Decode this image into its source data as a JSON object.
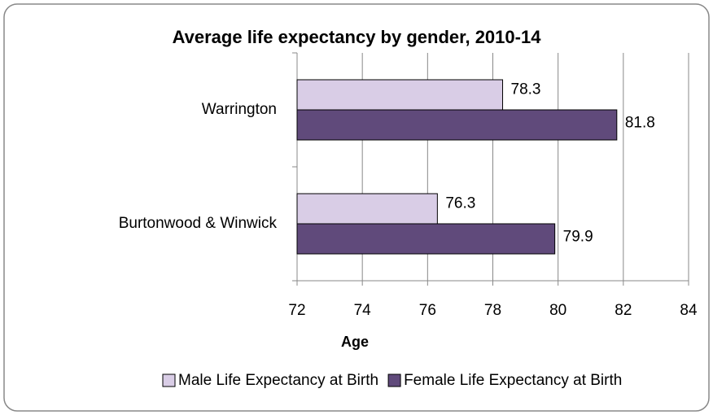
{
  "chart_data": {
    "type": "bar",
    "orientation": "horizontal",
    "title": "Average life expectancy by gender, 2010-14",
    "x_label": "Age",
    "categories": [
      "Warrington",
      "Burtonwood & Winwick"
    ],
    "series": [
      {
        "name": "Male Life Expectancy at Birth",
        "color": "#d9cde6",
        "values": [
          78.3,
          76.3
        ]
      },
      {
        "name": "Female Life Expectancy at Birth",
        "color": "#604a7b",
        "values": [
          81.8,
          79.9
        ]
      }
    ],
    "xlim": [
      72,
      84
    ],
    "xticks": [
      72,
      74,
      76,
      78,
      80,
      82,
      84
    ],
    "grid": true,
    "legend": "bottom"
  }
}
